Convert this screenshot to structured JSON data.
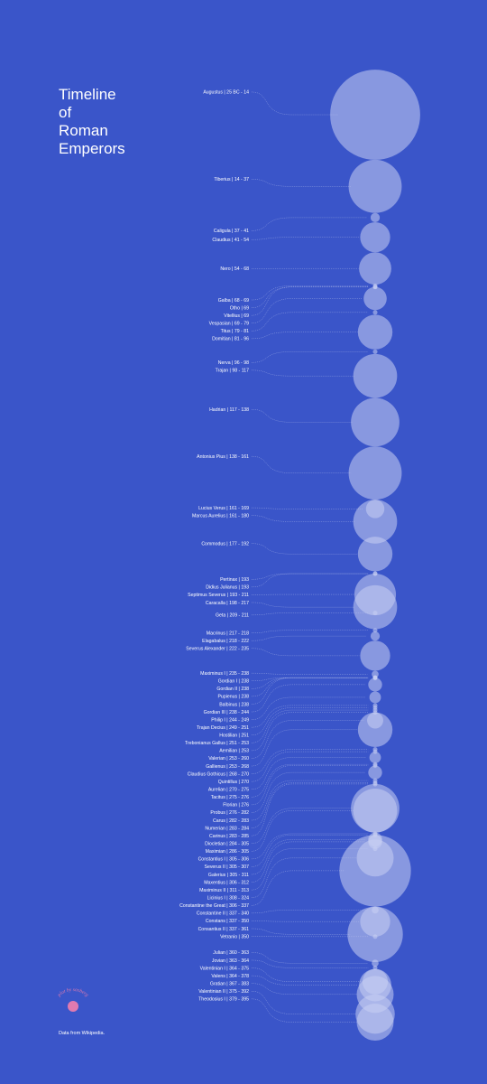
{
  "title_lines": [
    "Timeline",
    "of",
    "Roman",
    "Emperors"
  ],
  "credit": "Data from Wikipedia.",
  "logo_text": "plot by sosberg",
  "colors": {
    "background": "#3a55c9",
    "bubble": "#c8d0f2",
    "text": "#ffffff",
    "logo_dot": "#e07ab0"
  },
  "chart_data": {
    "type": "bubble-timeline",
    "axis": "year",
    "y_range": [
      -27,
      395
    ],
    "emperors": [
      {
        "label": "Augustus | 25 BC - 14",
        "start": -25,
        "end": 14
      },
      {
        "label": "Tiberius | 14 - 37",
        "start": 14,
        "end": 37
      },
      {
        "label": "Caligula | 37 - 41",
        "start": 37,
        "end": 41
      },
      {
        "label": "Claudius | 41 - 54",
        "start": 41,
        "end": 54
      },
      {
        "label": "Nero | 54 - 68",
        "start": 54,
        "end": 68
      },
      {
        "label": "Galba | 68 - 69",
        "start": 68,
        "end": 69
      },
      {
        "label": "Otho | 69",
        "start": 69,
        "end": 69
      },
      {
        "label": "Vitellius | 69",
        "start": 69,
        "end": 69
      },
      {
        "label": "Vespasian | 69 - 79",
        "start": 69,
        "end": 79
      },
      {
        "label": "Titus | 79 - 81",
        "start": 79,
        "end": 81
      },
      {
        "label": "Domitian | 81 - 96",
        "start": 81,
        "end": 96
      },
      {
        "label": "Nerva | 96 - 98",
        "start": 96,
        "end": 98
      },
      {
        "label": "Trajan | 98 - 117",
        "start": 98,
        "end": 117
      },
      {
        "label": "Hadrian | 117 - 138",
        "start": 117,
        "end": 138
      },
      {
        "label": "Antonius Pius | 138 - 161",
        "start": 138,
        "end": 161
      },
      {
        "label": "Lucius Verus | 161 - 169",
        "start": 161,
        "end": 169
      },
      {
        "label": "Marcus Aurelius | 161 - 180",
        "start": 161,
        "end": 180
      },
      {
        "label": "Commodus | 177 - 192",
        "start": 177,
        "end": 192
      },
      {
        "label": "Pertinax | 193",
        "start": 193,
        "end": 193
      },
      {
        "label": "Didius Julianus | 193",
        "start": 193,
        "end": 193
      },
      {
        "label": "Septimus Severus | 193 - 211",
        "start": 193,
        "end": 211
      },
      {
        "label": "Caracalla | 198 - 217",
        "start": 198,
        "end": 217
      },
      {
        "label": "Geta | 209 - 211",
        "start": 209,
        "end": 211
      },
      {
        "label": "Macrinus | 217 - 218",
        "start": 217,
        "end": 218
      },
      {
        "label": "Elagabalus | 218 - 222",
        "start": 218,
        "end": 222
      },
      {
        "label": "Severus Alexander | 222 - 235",
        "start": 222,
        "end": 235
      },
      {
        "label": "Maximinus I | 235 - 238",
        "start": 235,
        "end": 238
      },
      {
        "label": "Gordian I | 238",
        "start": 238,
        "end": 238
      },
      {
        "label": "Gordian II | 238",
        "start": 238,
        "end": 238
      },
      {
        "label": "Pupienus | 238",
        "start": 238,
        "end": 238
      },
      {
        "label": "Balbinus | 238",
        "start": 238,
        "end": 238
      },
      {
        "label": "Gordian III | 238 - 244",
        "start": 238,
        "end": 244
      },
      {
        "label": "Philip I | 244 - 249",
        "start": 244,
        "end": 249
      },
      {
        "label": "Trajan Decius | 249 - 251",
        "start": 249,
        "end": 251
      },
      {
        "label": "Hostilian | 251",
        "start": 251,
        "end": 251
      },
      {
        "label": "Trebonianus Gallus | 251 - 253",
        "start": 251,
        "end": 253
      },
      {
        "label": "Aemilian | 253",
        "start": 253,
        "end": 253
      },
      {
        "label": "Valerian | 253 - 260",
        "start": 253,
        "end": 260
      },
      {
        "label": "Gallienus | 253 - 268",
        "start": 253,
        "end": 268
      },
      {
        "label": "Claudius Gothicus | 268 - 270",
        "start": 268,
        "end": 270
      },
      {
        "label": "Quintillus | 270",
        "start": 270,
        "end": 270
      },
      {
        "label": "Aurelian | 270 - 275",
        "start": 270,
        "end": 275
      },
      {
        "label": "Tacitus | 275 - 276",
        "start": 275,
        "end": 276
      },
      {
        "label": "Florian | 276",
        "start": 276,
        "end": 276
      },
      {
        "label": "Probus | 276 - 282",
        "start": 276,
        "end": 282
      },
      {
        "label": "Carus | 282 - 283",
        "start": 282,
        "end": 283
      },
      {
        "label": "Numerian | 283 - 284",
        "start": 283,
        "end": 284
      },
      {
        "label": "Carinus | 283 - 285",
        "start": 283,
        "end": 285
      },
      {
        "label": "Diocletian | 284 - 305",
        "start": 284,
        "end": 305
      },
      {
        "label": "Maximian | 286 - 305",
        "start": 286,
        "end": 305
      },
      {
        "label": "Constantius I | 305 - 306",
        "start": 305,
        "end": 306
      },
      {
        "label": "Severus II | 305 - 307",
        "start": 305,
        "end": 307
      },
      {
        "label": "Galerius | 305 - 311",
        "start": 305,
        "end": 311
      },
      {
        "label": "Maxentius | 306 - 312",
        "start": 306,
        "end": 312
      },
      {
        "label": "Maximinus II | 311 - 313",
        "start": 311,
        "end": 313
      },
      {
        "label": "Licinius I | 308 - 324",
        "start": 308,
        "end": 324
      },
      {
        "label": "Constantine the Great | 306 - 337",
        "start": 306,
        "end": 337
      },
      {
        "label": "Constantine II | 337 - 340",
        "start": 337,
        "end": 340
      },
      {
        "label": "Constans | 337 - 350",
        "start": 337,
        "end": 350
      },
      {
        "label": "Consantius II | 337 - 361",
        "start": 337,
        "end": 361
      },
      {
        "label": "Vetranio | 350",
        "start": 350,
        "end": 350
      },
      {
        "label": "Julian | 360 - 363",
        "start": 360,
        "end": 363
      },
      {
        "label": "Jovian | 363 - 364",
        "start": 363,
        "end": 364
      },
      {
        "label": "Valentinian I | 364 - 375",
        "start": 364,
        "end": 375
      },
      {
        "label": "Valens | 364 - 378",
        "start": 364,
        "end": 378
      },
      {
        "label": "Gratian | 367 - 383",
        "start": 367,
        "end": 383
      },
      {
        "label": "Valentinian II | 375 - 392",
        "start": 375,
        "end": 392
      },
      {
        "label": "Theodosius I | 379 - 395",
        "start": 379,
        "end": 395
      }
    ]
  }
}
